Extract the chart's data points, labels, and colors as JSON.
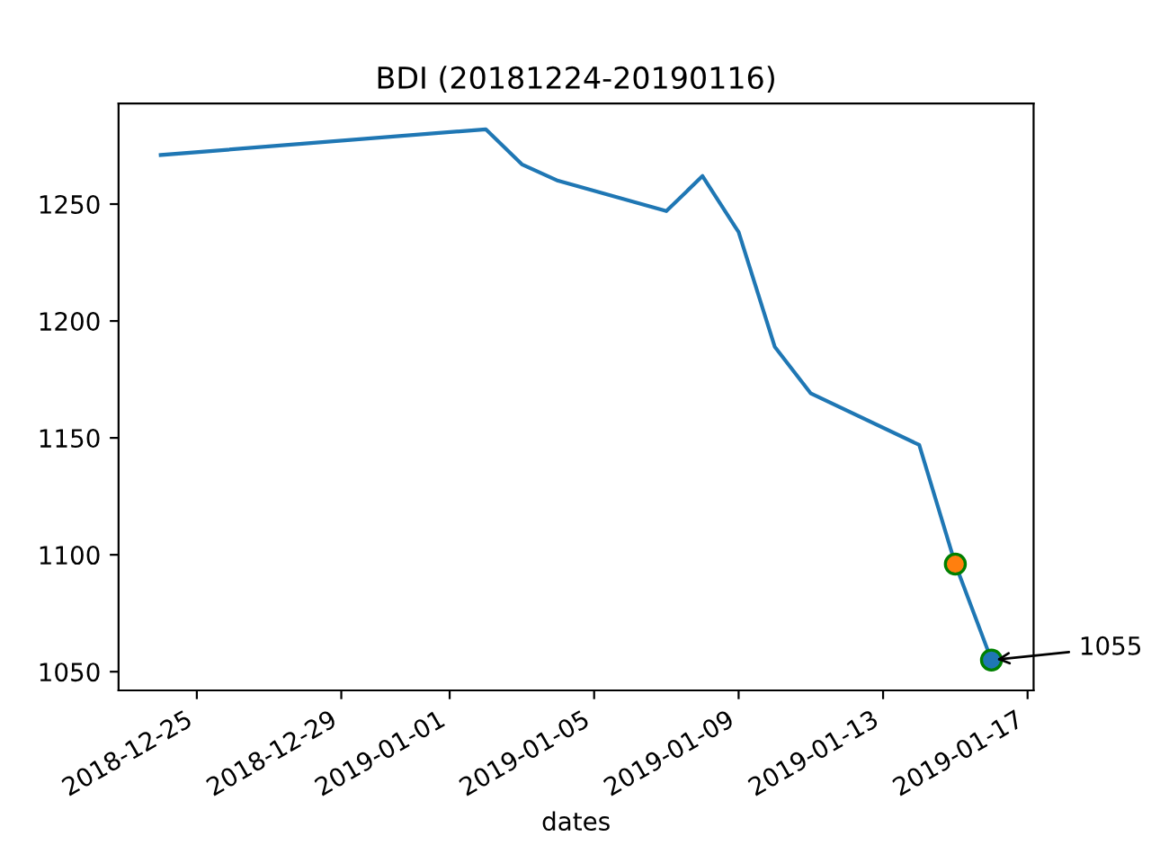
{
  "chart_data": {
    "type": "line",
    "title": "BDI (20181224-20190116)",
    "xlabel": "dates",
    "xlim": [
      "2018-12-22T20:00",
      "2019-01-17T04:00"
    ],
    "ylim": [
      1042,
      1293
    ],
    "xticks": [
      {
        "value": "2018-12-25",
        "label": "2018-12-25"
      },
      {
        "value": "2018-12-29",
        "label": "2018-12-29"
      },
      {
        "value": "2019-01-01",
        "label": "2019-01-01"
      },
      {
        "value": "2019-01-05",
        "label": "2019-01-05"
      },
      {
        "value": "2019-01-09",
        "label": "2019-01-09"
      },
      {
        "value": "2019-01-13",
        "label": "2019-01-13"
      },
      {
        "value": "2019-01-17",
        "label": "2019-01-17"
      }
    ],
    "yticks": [
      1050,
      1100,
      1150,
      1200,
      1250
    ],
    "series": [
      {
        "color": "#1f77b4",
        "x": [
          "2018-12-24",
          "2019-01-02",
          "2019-01-03",
          "2019-01-04",
          "2019-01-07",
          "2019-01-08",
          "2019-01-09",
          "2019-01-10",
          "2019-01-11",
          "2019-01-14",
          "2019-01-15",
          "2019-01-16"
        ],
        "values": [
          1271,
          1282,
          1267,
          1260,
          1247,
          1262,
          1238,
          1189,
          1169,
          1147,
          1096,
          1055
        ]
      },
      {
        "type": "scatter",
        "color": "#ff7f0e",
        "x": [
          "2019-01-15"
        ],
        "values": [
          1096
        ]
      },
      {
        "type": "scatter",
        "color": "#1f77b4",
        "x": [
          "2019-01-16"
        ],
        "values": [
          1055
        ]
      }
    ],
    "annotations": [
      {
        "text": "1055",
        "x": "2019-01-16",
        "y": 1055
      }
    ],
    "grid": false,
    "legend": false
  }
}
